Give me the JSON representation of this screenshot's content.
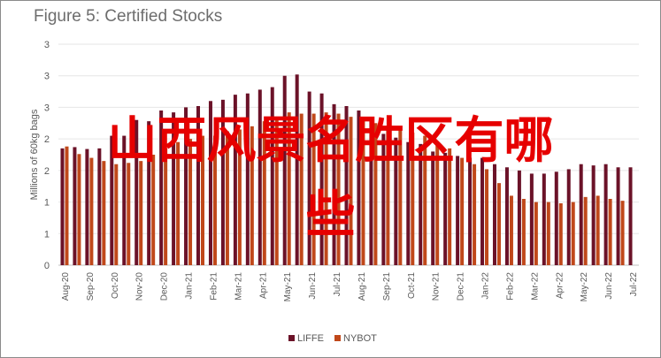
{
  "chart_data": {
    "type": "bar",
    "title": "Figure 5: Certified Stocks",
    "ylabel": "Millions of 60kg bags",
    "ylim": [
      0,
      3.5
    ],
    "y_ticks": [
      "0",
      "1",
      "1",
      "2",
      "2",
      "3",
      "3",
      "3"
    ],
    "categories": [
      "Aug-20",
      "",
      "Sep-20",
      "",
      "Oct-20",
      "",
      "Nov-20",
      "",
      "Dec-20",
      "",
      "Jan-21",
      "",
      "Feb-21",
      "",
      "Mar-21",
      "",
      "Apr-21",
      "",
      "May-21",
      "",
      "Jun-21",
      "",
      "Jul-21",
      "",
      "Aug-21",
      "",
      "Sep-21",
      "",
      "Oct-21",
      "",
      "Nov-21",
      "",
      "Dec-21",
      "",
      "Jan-22",
      "",
      "Feb-22",
      "",
      "Mar-22",
      "",
      "Apr-22",
      "",
      "May-22",
      "",
      "Jun-22",
      "",
      "Jul-22"
    ],
    "series": [
      {
        "name": "LIFFE",
        "color": "#6b1228",
        "values": [
          1.85,
          1.87,
          1.84,
          1.85,
          2.05,
          2.05,
          2.3,
          2.28,
          2.45,
          2.42,
          2.5,
          2.52,
          2.6,
          2.62,
          2.7,
          2.72,
          2.78,
          2.82,
          3.0,
          3.02,
          2.75,
          2.72,
          2.55,
          2.52,
          2.45,
          2.3,
          2.08,
          2.02,
          1.95,
          1.92,
          1.8,
          1.78,
          1.73,
          1.7,
          1.7,
          1.6,
          1.55,
          1.5,
          1.45,
          1.45,
          1.48,
          1.52,
          1.6,
          1.58,
          1.6,
          1.55,
          1.55
        ]
      },
      {
        "name": "NYBOT",
        "color": "#c0481a",
        "values": [
          1.88,
          1.76,
          1.7,
          1.65,
          1.6,
          1.62,
          1.65,
          1.75,
          1.85,
          1.95,
          2.0,
          2.05,
          2.05,
          2.12,
          2.15,
          2.2,
          2.28,
          2.35,
          2.42,
          2.4,
          2.4,
          2.42,
          2.4,
          2.35,
          2.3,
          2.25,
          2.2,
          2.15,
          2.1,
          2.05,
          1.9,
          1.85,
          1.7,
          1.6,
          1.52,
          1.3,
          1.1,
          1.05,
          1.0,
          1.0,
          0.98,
          1.0,
          1.08,
          1.1,
          1.05,
          1.02,
          0.0
        ]
      }
    ],
    "legend": "bottom",
    "grid": true
  },
  "overlay_text": [
    "山西风景名胜区有哪",
    "些"
  ]
}
